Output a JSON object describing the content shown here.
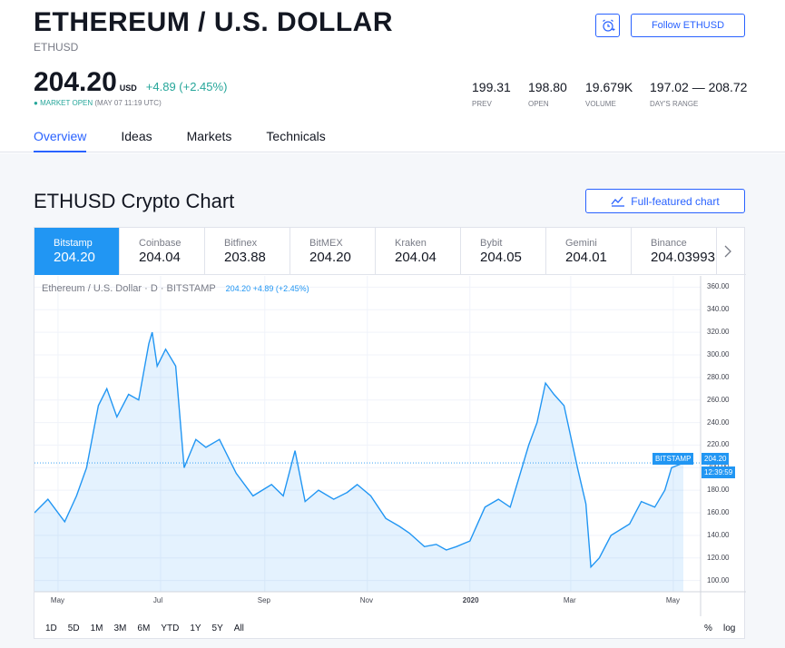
{
  "header": {
    "title": "ETHEREUM / U.S. DOLLAR",
    "symbol": "ETHUSD",
    "price": "204.20",
    "currency": "USD",
    "change": "+4.89 (+2.45%)",
    "market_status": "MARKET OPEN",
    "market_time": "(MAY 07 11:19 UTC)",
    "follow_label": "Follow ETHUSD",
    "stats": [
      {
        "value": "199.31",
        "label": "PREV"
      },
      {
        "value": "198.80",
        "label": "OPEN"
      },
      {
        "value": "19.679K",
        "label": "VOLUME"
      },
      {
        "value": "197.02 — 208.72",
        "label": "DAY'S RANGE"
      }
    ],
    "tabs": [
      "Overview",
      "Ideas",
      "Markets",
      "Technicals"
    ]
  },
  "section": {
    "title": "ETHUSD Crypto Chart",
    "full_chart_label": "Full-featured chart"
  },
  "exchanges": [
    {
      "name": "Bitstamp",
      "price": "204.20"
    },
    {
      "name": "Coinbase",
      "price": "204.04"
    },
    {
      "name": "Bitfinex",
      "price": "203.88"
    },
    {
      "name": "BitMEX",
      "price": "204.20"
    },
    {
      "name": "Kraken",
      "price": "204.04"
    },
    {
      "name": "Bybit",
      "price": "204.05"
    },
    {
      "name": "Gemini",
      "price": "204.01"
    },
    {
      "name": "Binance",
      "price": "204.03993"
    }
  ],
  "chart_legend": {
    "label": "Ethereum / U.S. Dollar · D · BITSTAMP",
    "value": "204.20 +4.89 (+2.45%)"
  },
  "price_tags": {
    "exchange": "BITSTAMP",
    "price": "204.20",
    "countdown": "12:39:59"
  },
  "ranges": [
    "1D",
    "5D",
    "1M",
    "3M",
    "6M",
    "YTD",
    "1Y",
    "5Y",
    "All"
  ],
  "scale_options": {
    "percent": "%",
    "log": "log"
  },
  "colors": {
    "accent": "#2962ff",
    "line": "#2196f3",
    "positive": "#26a69a"
  },
  "chart_data": {
    "type": "area",
    "title": "Ethereum / U.S. Dollar · D · BITSTAMP",
    "ylim": [
      90,
      370
    ],
    "y_ticks": [
      "360.00",
      "340.00",
      "320.00",
      "300.00",
      "280.00",
      "260.00",
      "240.00",
      "220.00",
      "200.00",
      "180.00",
      "160.00",
      "140.00",
      "120.00",
      "100.00"
    ],
    "x_ticks": [
      "May",
      "Jul",
      "Sep",
      "Nov",
      "2020",
      "Mar",
      "May"
    ],
    "series": [
      {
        "x": [
          "2019-04-17",
          "2019-04-25",
          "2019-05-05",
          "2019-05-12",
          "2019-05-18",
          "2019-05-25",
          "2019-05-30",
          "2019-06-05",
          "2019-06-12",
          "2019-06-18",
          "2019-06-24",
          "2019-06-26",
          "2019-06-29",
          "2019-07-04",
          "2019-07-10",
          "2019-07-15",
          "2019-07-22",
          "2019-07-28",
          "2019-08-05",
          "2019-08-15",
          "2019-08-25",
          "2019-09-05",
          "2019-09-12",
          "2019-09-19",
          "2019-09-25",
          "2019-10-03",
          "2019-10-12",
          "2019-10-20",
          "2019-10-26",
          "2019-11-03",
          "2019-11-12",
          "2019-11-20",
          "2019-11-26",
          "2019-12-05",
          "2019-12-12",
          "2019-12-18",
          "2019-12-24",
          "2020-01-01",
          "2020-01-10",
          "2020-01-18",
          "2020-01-25",
          "2020-02-05",
          "2020-02-10",
          "2020-02-15",
          "2020-02-20",
          "2020-02-26",
          "2020-03-05",
          "2020-03-10",
          "2020-03-13",
          "2020-03-18",
          "2020-03-25",
          "2020-04-05",
          "2020-04-12",
          "2020-04-20",
          "2020-04-26",
          "2020-04-30",
          "2020-05-07"
        ],
        "values": [
          160,
          172,
          152,
          175,
          200,
          255,
          270,
          245,
          265,
          260,
          310,
          320,
          290,
          305,
          290,
          200,
          225,
          218,
          225,
          195,
          175,
          185,
          175,
          215,
          170,
          180,
          172,
          178,
          185,
          175,
          155,
          148,
          142,
          130,
          132,
          127,
          130,
          135,
          165,
          172,
          165,
          220,
          240,
          275,
          265,
          255,
          200,
          168,
          112,
          120,
          140,
          150,
          170,
          165,
          180,
          200,
          204.2
        ]
      }
    ]
  }
}
